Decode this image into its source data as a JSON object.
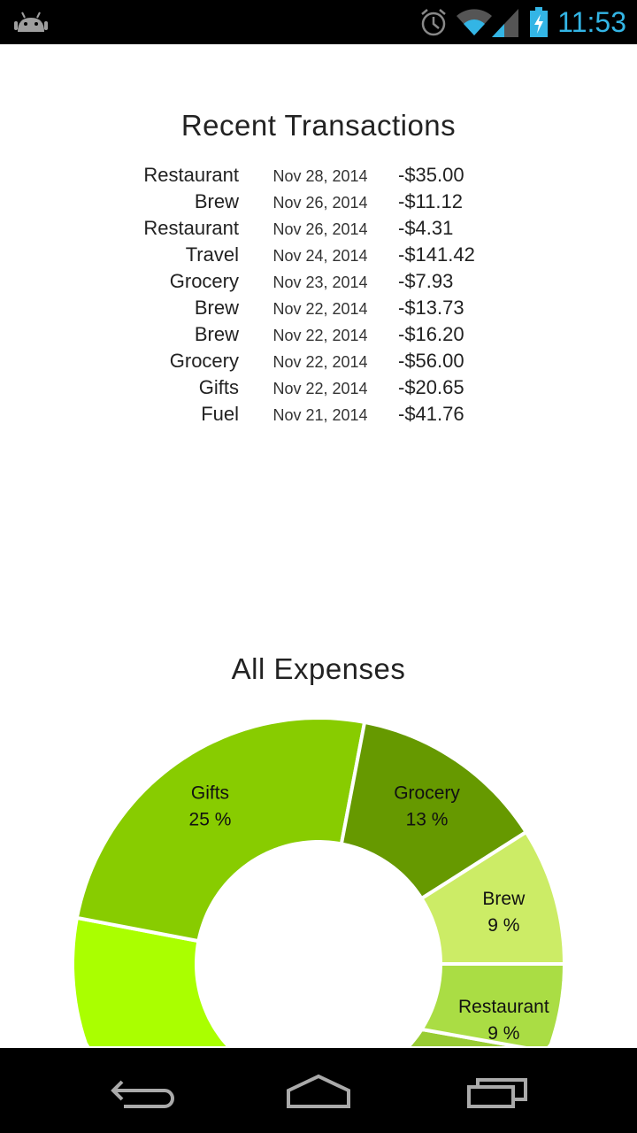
{
  "status_bar": {
    "time": "11:53",
    "icons": [
      "android-notification-icon",
      "alarm-icon",
      "wifi-icon",
      "cell-signal-icon",
      "battery-charging-icon"
    ],
    "accent": "#33b5e5"
  },
  "transactions": {
    "title": "Recent Transactions",
    "rows": [
      {
        "category": "Restaurant",
        "date": "Nov 28, 2014",
        "amount": "-$35.00"
      },
      {
        "category": "Brew",
        "date": "Nov 26, 2014",
        "amount": "-$11.12"
      },
      {
        "category": "Restaurant",
        "date": "Nov 26, 2014",
        "amount": "-$4.31"
      },
      {
        "category": "Travel",
        "date": "Nov 24, 2014",
        "amount": "-$141.42"
      },
      {
        "category": "Grocery",
        "date": "Nov 23, 2014",
        "amount": "-$7.93"
      },
      {
        "category": "Brew",
        "date": "Nov 22, 2014",
        "amount": "-$13.73"
      },
      {
        "category": "Brew",
        "date": "Nov 22, 2014",
        "amount": "-$16.20"
      },
      {
        "category": "Grocery",
        "date": "Nov 22, 2014",
        "amount": "-$56.00"
      },
      {
        "category": "Gifts",
        "date": "Nov 22, 2014",
        "amount": "-$20.65"
      },
      {
        "category": "Fuel",
        "date": "Nov 21, 2014",
        "amount": "-$41.76"
      }
    ]
  },
  "chart_data": {
    "type": "pie",
    "style": "donut",
    "title": "All Expenses",
    "slices": [
      {
        "label": "Gifts",
        "percent": 25,
        "display": "25 %",
        "color": "#88cc00"
      },
      {
        "label": "Grocery",
        "percent": 13,
        "display": "13 %",
        "color": "#669900"
      },
      {
        "label": "Brew",
        "percent": 9,
        "display": "9 %",
        "color": "#ccec66"
      },
      {
        "label": "Restaurant",
        "percent": 9,
        "display": "9 %",
        "color": "#aadd44"
      }
    ],
    "cut_off_slice_colors": [
      "#99cc33",
      "#aaff00"
    ],
    "legend": "none"
  },
  "nav_bar": {
    "buttons": [
      "back-icon",
      "home-icon",
      "recents-icon"
    ]
  }
}
